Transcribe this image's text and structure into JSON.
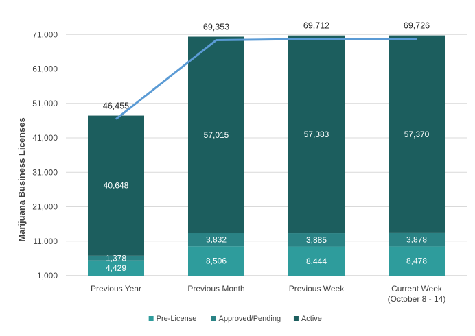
{
  "chart_data": {
    "type": "bar",
    "stacked": true,
    "ylabel": "Marijuana Business Licenses",
    "ylim": [
      1000,
      81000
    ],
    "yticks": [
      "1,000",
      "11,000",
      "21,000",
      "31,000",
      "41,000",
      "51,000",
      "61,000",
      "71,000"
    ],
    "categories": [
      [
        "Previous Year"
      ],
      [
        "Previous Month"
      ],
      [
        "Previous Week"
      ],
      [
        "Current Week",
        "(October 8 - 14)"
      ]
    ],
    "series": [
      {
        "name": "Pre-License",
        "color": "#2e9c9c",
        "values": [
          4429,
          8506,
          8444,
          8478
        ],
        "labels": [
          "4,429",
          "8,506",
          "8,444",
          "8,478"
        ]
      },
      {
        "name": "Approved/Pending",
        "color": "#2a8385",
        "values": [
          1378,
          3832,
          3885,
          3878
        ],
        "labels": [
          "1,378",
          "3,832",
          "3,885",
          "3,878"
        ]
      },
      {
        "name": "Active",
        "color": "#1c5e5e",
        "values": [
          40648,
          57015,
          57383,
          57370
        ],
        "labels": [
          "40,648",
          "57,015",
          "57,383",
          "57,370"
        ]
      }
    ],
    "totals": {
      "color": "#5b9bd5",
      "values": [
        46455,
        69353,
        69712,
        69726
      ],
      "labels": [
        "46,455",
        "69,353",
        "69,712",
        "69,726"
      ]
    },
    "grid": true,
    "legend_position": "bottom"
  }
}
